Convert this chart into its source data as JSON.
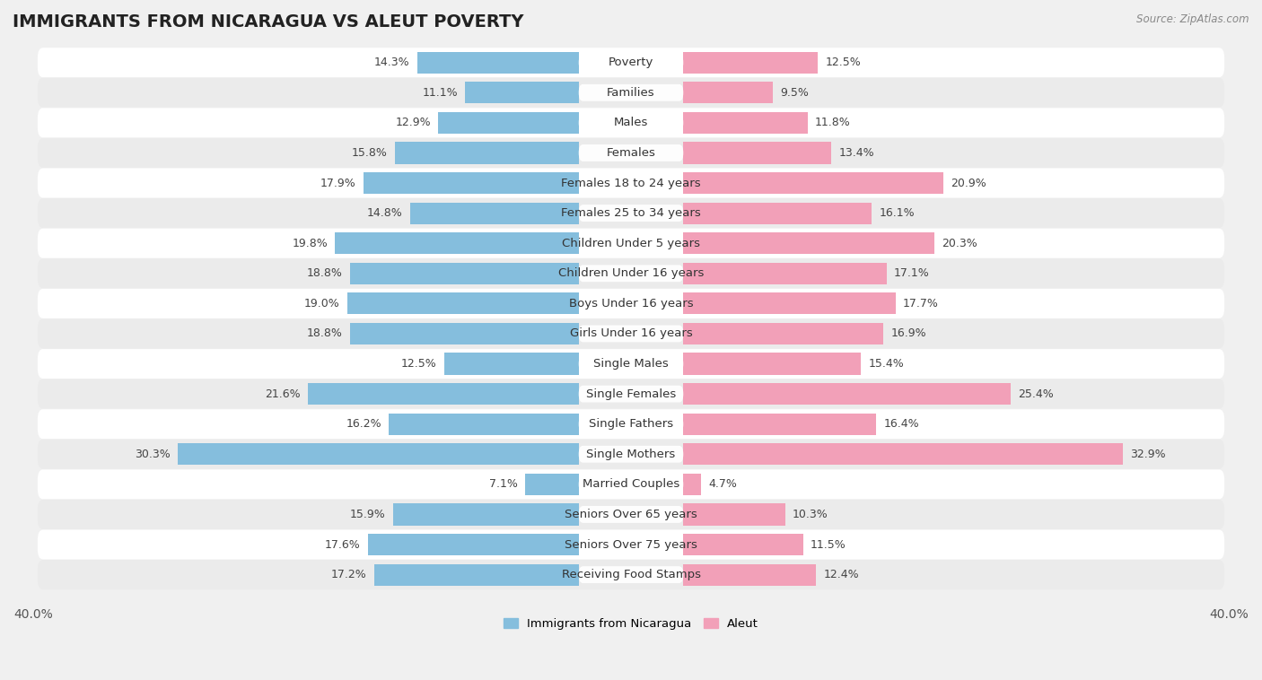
{
  "title": "IMMIGRANTS FROM NICARAGUA VS ALEUT POVERTY",
  "source": "Source: ZipAtlas.com",
  "categories": [
    "Poverty",
    "Families",
    "Males",
    "Females",
    "Females 18 to 24 years",
    "Females 25 to 34 years",
    "Children Under 5 years",
    "Children Under 16 years",
    "Boys Under 16 years",
    "Girls Under 16 years",
    "Single Males",
    "Single Females",
    "Single Fathers",
    "Single Mothers",
    "Married Couples",
    "Seniors Over 65 years",
    "Seniors Over 75 years",
    "Receiving Food Stamps"
  ],
  "nicaragua_values": [
    14.3,
    11.1,
    12.9,
    15.8,
    17.9,
    14.8,
    19.8,
    18.8,
    19.0,
    18.8,
    12.5,
    21.6,
    16.2,
    30.3,
    7.1,
    15.9,
    17.6,
    17.2
  ],
  "aleut_values": [
    12.5,
    9.5,
    11.8,
    13.4,
    20.9,
    16.1,
    20.3,
    17.1,
    17.7,
    16.9,
    15.4,
    25.4,
    16.4,
    32.9,
    4.7,
    10.3,
    11.5,
    12.4
  ],
  "nicaragua_color": "#85bedd",
  "aleut_color": "#f2a0b8",
  "nicaragua_label": "Immigrants from Nicaragua",
  "aleut_label": "Aleut",
  "xlim": 40.0,
  "background_color": "#f0f0f0",
  "row_bg_even": "#e8e8e8",
  "row_bg_odd": "#fafafa",
  "title_fontsize": 14,
  "label_fontsize": 9.5,
  "value_fontsize": 9,
  "axis_fontsize": 10
}
